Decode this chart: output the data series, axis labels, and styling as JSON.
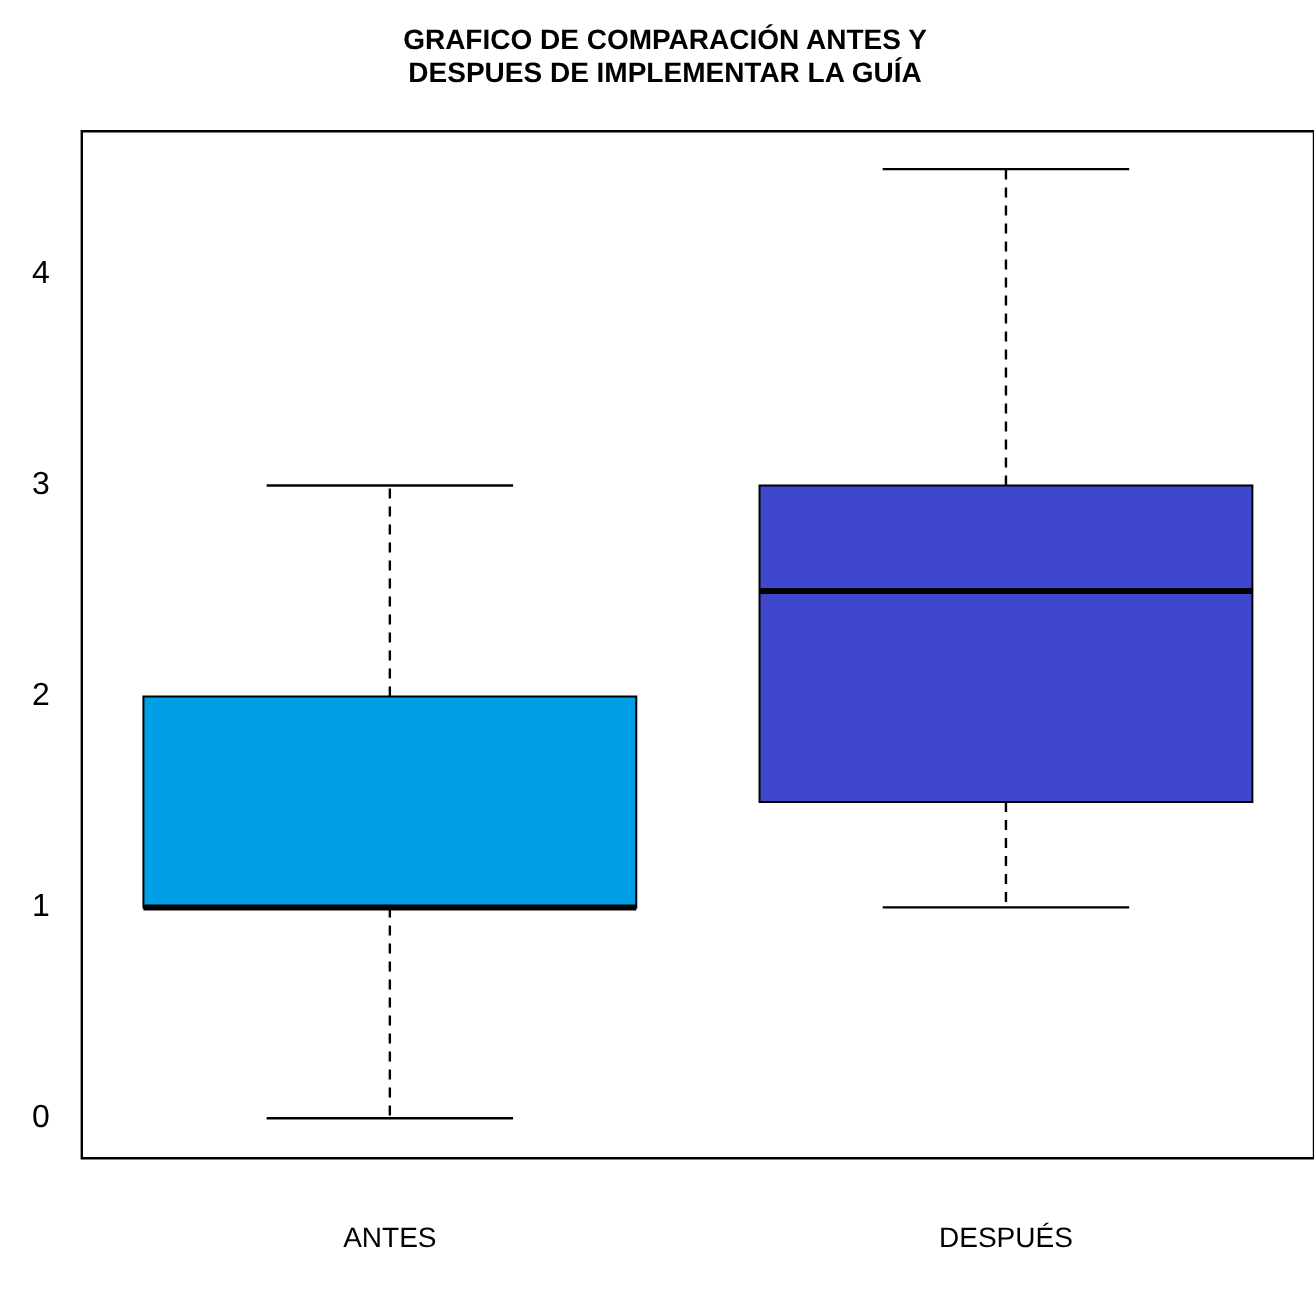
{
  "chart_data": {
    "type": "box",
    "title": "GRAFICO DE COMPARACIÓN ANTES Y\nDESPUES DE IMPLEMENTAR LA GUÍA",
    "categories": [
      "ANTES",
      "DESPUÉS"
    ],
    "boxes": [
      {
        "low": 0,
        "q1": 1,
        "median": 1,
        "q3": 2,
        "high": 3
      },
      {
        "low": 1,
        "q1": 1.5,
        "median": 2.5,
        "q3": 3,
        "high": 4.5
      }
    ],
    "colors": [
      "#00a0e6",
      "#3f48cc"
    ],
    "ylim": [
      -0.19,
      4.68
    ],
    "yticks": [
      0,
      1,
      2,
      3,
      4
    ],
    "grid": false,
    "legend": false
  }
}
